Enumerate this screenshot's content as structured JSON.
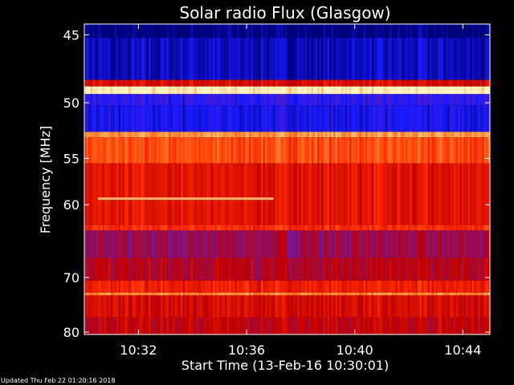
{
  "chart_data": {
    "type": "heatmap",
    "title": "Solar radio Flux (Glasgow)",
    "xlabel": "Start Time (13-Feb-16 10:30:01)",
    "ylabel": "Frequency [MHz]",
    "x_ticks": [
      "10:32",
      "10:36",
      "10:40",
      "10:44"
    ],
    "x_tick_minutes": [
      2,
      6,
      10,
      14
    ],
    "x_range_minutes": [
      0,
      15
    ],
    "y_ticks": [
      45,
      50,
      55,
      60,
      70,
      80
    ],
    "y_range_mhz": [
      44.3,
      80.5
    ],
    "y_scale": "reciprocal",
    "grid": false,
    "colormap": [
      "#00007a",
      "#1a1aff",
      "#6a1ab0",
      "#c00000",
      "#ff2a00",
      "#ff8a30",
      "#fff4c0"
    ],
    "bands": [
      {
        "from": 44.3,
        "to": 45.2,
        "level": 0.0
      },
      {
        "from": 45.2,
        "to": 48.2,
        "level": 0.08
      },
      {
        "from": 48.2,
        "to": 48.7,
        "level": 0.55
      },
      {
        "from": 48.7,
        "to": 49.3,
        "level": 1.0
      },
      {
        "from": 49.3,
        "to": 50.2,
        "level": 0.2
      },
      {
        "from": 50.2,
        "to": 52.5,
        "level": 0.15
      },
      {
        "from": 52.5,
        "to": 53.0,
        "level": 0.85
      },
      {
        "from": 53.0,
        "to": 55.5,
        "level": 0.72
      },
      {
        "from": 55.5,
        "to": 62.5,
        "level": 0.58
      },
      {
        "from": 62.5,
        "to": 63.2,
        "level": 0.66
      },
      {
        "from": 63.2,
        "to": 67.0,
        "level": 0.42
      },
      {
        "from": 67.0,
        "to": 70.5,
        "level": 0.48
      },
      {
        "from": 70.5,
        "to": 72.5,
        "level": 0.62
      },
      {
        "from": 72.5,
        "to": 73.0,
        "level": 0.82
      },
      {
        "from": 73.0,
        "to": 77.0,
        "level": 0.55
      },
      {
        "from": 77.0,
        "to": 80.5,
        "level": 0.5
      }
    ],
    "features": [
      {
        "type": "line",
        "freq": 59.3,
        "from_min": 0.5,
        "to_min": 7.0,
        "level": 0.9
      }
    ],
    "footer": "Updated Thu Feb 22 01:20:16 2018"
  }
}
